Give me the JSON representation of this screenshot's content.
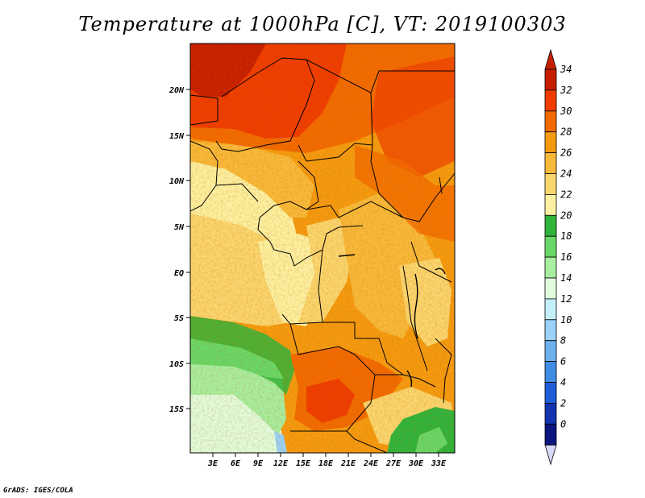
{
  "title": "Temperature at 1000hPa [C], VT: 2019100303",
  "credit": "GrADS: IGES/COLA",
  "map": {
    "lat_labels": [
      "20N",
      "15N",
      "10N",
      "5N",
      "EQ",
      "5S",
      "10S",
      "15S"
    ],
    "lon_labels": [
      "3E",
      "6E",
      "9E",
      "12E",
      "15E",
      "18E",
      "21E",
      "24E",
      "27E",
      "30E",
      "33E"
    ]
  },
  "colorbar": {
    "labels": [
      "34",
      "32",
      "30",
      "28",
      "26",
      "24",
      "22",
      "20",
      "18",
      "16",
      "14",
      "12",
      "10",
      "8",
      "6",
      "4",
      "2",
      "0"
    ],
    "colors": [
      "#c81e00",
      "#ef3c00",
      "#f26a00",
      "#f59a10",
      "#f8b93a",
      "#fbd56e",
      "#fdf0a0",
      "#2fb43c",
      "#68d868",
      "#a8eea0",
      "#e0fcdc",
      "#c4f0fa",
      "#9ad2f8",
      "#6cb0ee",
      "#3e8ce4",
      "#1e5ed6",
      "#1433b0",
      "#0c1680"
    ],
    "overflow_high": "#c81e00",
    "overflow_low": "#d8d8f8"
  }
}
